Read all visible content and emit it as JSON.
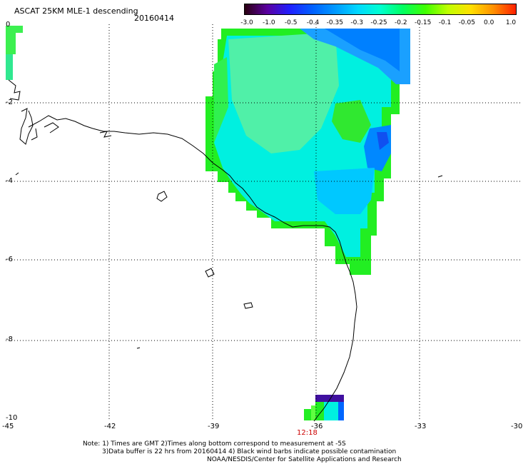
{
  "header": {
    "title": "ASCAT 25KM MLE-1 descending",
    "date": "20160414"
  },
  "colorbar": {
    "labels": [
      "-3.0",
      "-1.0",
      "-0.5",
      "-0.4",
      "-0.35",
      "-0.3",
      "-0.25",
      "-0.2",
      "-0.15",
      "-0.1",
      "-0.05",
      "0.0",
      "1.0"
    ],
    "colors": [
      "#2a0010",
      "#5a00a0",
      "#2020ff",
      "#0060ff",
      "#0099ff",
      "#00d8ff",
      "#00ffd0",
      "#00ff60",
      "#40ff00",
      "#c0ff00",
      "#ffe000",
      "#ff9000",
      "#ff2000"
    ]
  },
  "map": {
    "lon_ticks": [
      "-45",
      "-42",
      "-39",
      "-36",
      "-33",
      "-30"
    ],
    "lat_ticks": [
      "0",
      "-2",
      "-4",
      "-6",
      "-8",
      "-10"
    ],
    "time_label": "12:18",
    "time_color": "#cc0000"
  },
  "notes": {
    "line1": "Note: 1) Times are GMT 2)Times along bottom correspond to measurement at -5S",
    "line2": "3)Data buffer is 22 hrs from 20160414 4) Black wind barbs indicate possible contamination",
    "line3": "NOAA/NESDIS/Center for Satellite Applications and Research"
  }
}
